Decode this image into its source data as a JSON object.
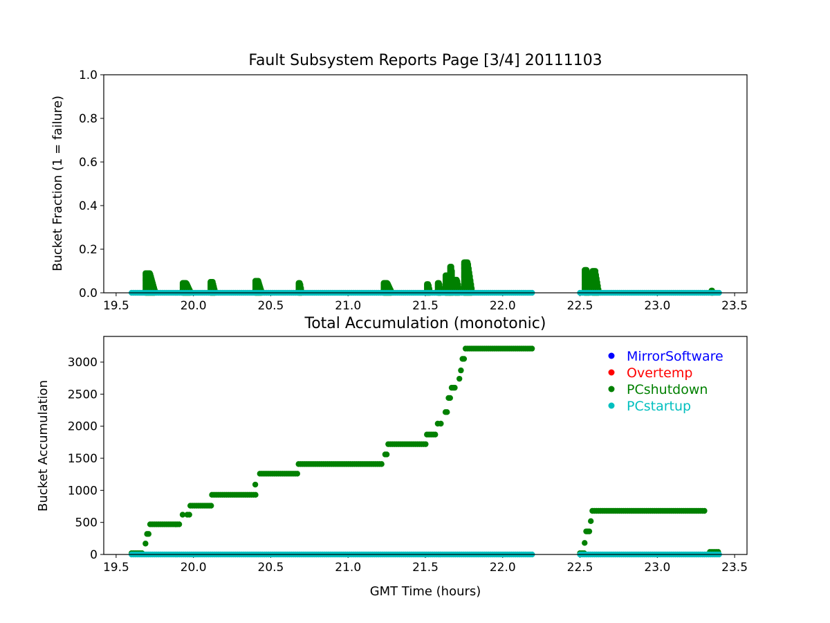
{
  "chart_data": [
    {
      "type": "scatter",
      "title": "Fault Subsystem Reports Page [3/4] 20111103",
      "xlabel": "",
      "ylabel": "Bucket Fraction (1 = failure)",
      "xlim": [
        19.42,
        23.58
      ],
      "ylim": [
        0,
        1.0
      ],
      "xticks": [
        "19.5",
        "20.0",
        "20.5",
        "21.0",
        "21.5",
        "22.0",
        "22.5",
        "23.0",
        "23.5"
      ],
      "yticks": [
        "0.0",
        "0.2",
        "0.4",
        "0.6",
        "0.8",
        "1.0"
      ],
      "grid": false,
      "series": [
        {
          "name": "PCshutdown",
          "color": "#008000",
          "bursts": [
            [
              19.69,
              19.75,
              0.09
            ],
            [
              19.93,
              19.98,
              0.045
            ],
            [
              20.11,
              20.14,
              0.05
            ],
            [
              20.4,
              20.44,
              0.055
            ],
            [
              20.68,
              20.7,
              0.045
            ],
            [
              21.23,
              21.28,
              0.045
            ],
            [
              21.51,
              21.53,
              0.04
            ],
            [
              21.58,
              21.6,
              0.045
            ],
            [
              21.63,
              21.66,
              0.08
            ],
            [
              21.66,
              21.68,
              0.12
            ],
            [
              21.69,
              21.72,
              0.06
            ],
            [
              21.75,
              21.8,
              0.14
            ],
            [
              22.53,
              22.56,
              0.105
            ],
            [
              22.58,
              22.62,
              0.1
            ],
            [
              23.35,
              23.36,
              0.01
            ]
          ]
        },
        {
          "name": "PCstartup",
          "color": "#00bfbf",
          "segments": [
            [
              19.6,
              22.2,
              0.0
            ],
            [
              22.5,
              23.4,
              0.0
            ]
          ]
        }
      ]
    },
    {
      "type": "scatter",
      "title": "Total Accumulation (monotonic)",
      "xlabel": "GMT Time (hours)",
      "ylabel": "Bucket Accumulation",
      "xlim": [
        19.42,
        23.58
      ],
      "ylim": [
        0,
        3400
      ],
      "xticks": [
        "19.5",
        "20.0",
        "20.5",
        "21.0",
        "21.5",
        "22.0",
        "22.5",
        "23.0",
        "23.5"
      ],
      "yticks": [
        "0",
        "500",
        "1000",
        "1500",
        "2000",
        "2500",
        "3000"
      ],
      "grid": false,
      "legend_position": "upper-right",
      "legend": [
        {
          "label": "MirrorSoftware",
          "color": "#0000ff"
        },
        {
          "label": "Overtemp",
          "color": "#ff0000"
        },
        {
          "label": "PCshutdown",
          "color": "#008000"
        },
        {
          "label": "PCstartup",
          "color": "#00bfbf"
        }
      ],
      "series": [
        {
          "name": "PCshutdown",
          "color": "#008000",
          "plateaus": [
            [
              19.6,
              19.68,
              20
            ],
            [
              19.72,
              19.92,
              470
            ],
            [
              19.96,
              19.98,
              620
            ],
            [
              19.98,
              20.12,
              760
            ],
            [
              20.12,
              20.41,
              930
            ],
            [
              20.43,
              20.68,
              1260
            ],
            [
              20.68,
              21.23,
              1410
            ],
            [
              21.26,
              21.51,
              1720
            ],
            [
              21.51,
              21.57,
              1870
            ],
            [
              21.76,
              22.2,
              3210
            ],
            [
              22.5,
              22.53,
              20
            ],
            [
              22.58,
              23.31,
              680
            ],
            [
              23.34,
              23.4,
              40
            ]
          ],
          "steps": [
            [
              19.69,
              170
            ],
            [
              19.7,
              320
            ],
            [
              19.71,
              320
            ],
            [
              19.93,
              620
            ],
            [
              20.4,
              1090
            ],
            [
              21.24,
              1560
            ],
            [
              21.25,
              1560
            ],
            [
              21.58,
              2040
            ],
            [
              21.6,
              2040
            ],
            [
              21.63,
              2220
            ],
            [
              21.64,
              2220
            ],
            [
              21.65,
              2440
            ],
            [
              21.66,
              2440
            ],
            [
              21.67,
              2600
            ],
            [
              21.68,
              2600
            ],
            [
              21.69,
              2600
            ],
            [
              21.72,
              2740
            ],
            [
              21.73,
              2870
            ],
            [
              21.74,
              3050
            ],
            [
              21.75,
              3050
            ],
            [
              22.53,
              180
            ],
            [
              22.54,
              360
            ],
            [
              22.55,
              360
            ],
            [
              22.56,
              360
            ],
            [
              22.57,
              520
            ]
          ]
        },
        {
          "name": "PCstartup",
          "color": "#00bfbf",
          "segments": [
            [
              19.6,
              22.2,
              0
            ],
            [
              22.5,
              23.4,
              0
            ]
          ]
        }
      ]
    }
  ]
}
